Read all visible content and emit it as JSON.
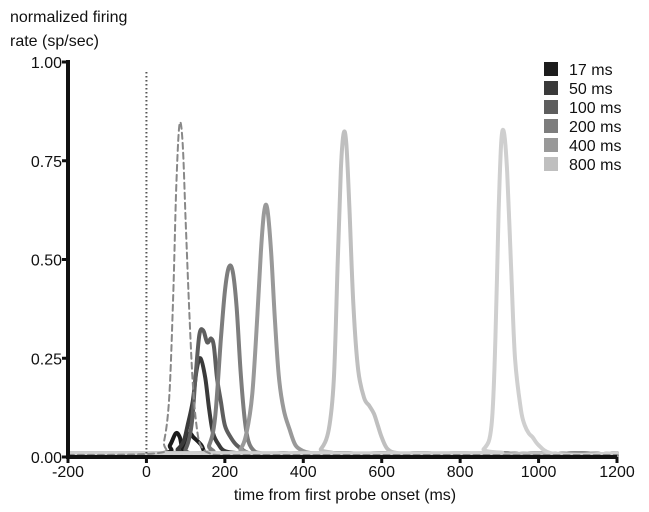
{
  "chart_data": {
    "type": "line",
    "title": "",
    "ylabel": "normalized firing rate (sp/sec)",
    "ylabel_lines": [
      "normalized firing",
      "rate (sp/sec)"
    ],
    "xlabel": "time from first probe onset (ms)",
    "xlim": [
      -200,
      1200
    ],
    "ylim": [
      0,
      1
    ],
    "x_ticks": [
      -200,
      0,
      200,
      400,
      600,
      800,
      1000,
      1200
    ],
    "x_tick_labels": [
      "-200",
      "0",
      "200",
      "400",
      "600",
      "800",
      "1000",
      "1200"
    ],
    "y_ticks": [
      0,
      0.25,
      0.5,
      0.75,
      1.0
    ],
    "y_tick_labels": [
      "0.00",
      "0.25",
      "0.50",
      "0.75",
      "1.00"
    ],
    "grid": false,
    "legend_position": "top-right",
    "reference_lines": [
      {
        "x": 0,
        "style": "dotted",
        "color": "#555555"
      }
    ],
    "series": [
      {
        "name": "17 ms",
        "color": "#1c1c1c",
        "x": [
          -200,
          40,
          60,
          75,
          85,
          92,
          100,
          110,
          120,
          140,
          150,
          170,
          200,
          240,
          300,
          350,
          400,
          500,
          600,
          700,
          800,
          900,
          1000,
          1100,
          1200
        ],
        "y": [
          0.005,
          0.01,
          0.03,
          0.06,
          0.05,
          0.02,
          0.04,
          0.06,
          0.05,
          0.03,
          0.01,
          0.01,
          0.005,
          0.01,
          0.005,
          0.01,
          0.005,
          0.01,
          0.005,
          0.01,
          0.005,
          0.01,
          0.005,
          0.01,
          0.005
        ]
      },
      {
        "name": "50 ms",
        "color": "#3a3a3a",
        "x": [
          -200,
          60,
          80,
          95,
          105,
          118,
          128,
          138,
          150,
          160,
          170,
          185,
          200,
          230,
          280,
          350,
          400,
          500,
          600,
          700,
          800,
          900,
          1000,
          1100,
          1200
        ],
        "y": [
          0.01,
          0.01,
          0.02,
          0.04,
          0.08,
          0.14,
          0.22,
          0.25,
          0.2,
          0.12,
          0.06,
          0.03,
          0.015,
          0.01,
          0.005,
          0.01,
          0.005,
          0.01,
          0.005,
          0.01,
          0.005,
          0.01,
          0.005,
          0.01,
          0.005
        ]
      },
      {
        "name": "100 ms",
        "color": "#5e5e5e",
        "x": [
          -200,
          80,
          100,
          115,
          125,
          135,
          145,
          155,
          165,
          172,
          180,
          190,
          200,
          215,
          230,
          260,
          300,
          400,
          500,
          600,
          700,
          800,
          900,
          1000,
          1100,
          1200
        ],
        "y": [
          0.01,
          0.01,
          0.02,
          0.08,
          0.2,
          0.31,
          0.32,
          0.29,
          0.3,
          0.28,
          0.2,
          0.14,
          0.08,
          0.05,
          0.03,
          0.01,
          0.005,
          0.01,
          0.005,
          0.01,
          0.005,
          0.01,
          0.005,
          0.01,
          0.005,
          0.01
        ]
      },
      {
        "name": "200 ms",
        "color": "#7d7d7d",
        "x": [
          -200,
          140,
          160,
          175,
          190,
          200,
          210,
          220,
          230,
          240,
          250,
          260,
          275,
          290,
          320,
          400,
          500,
          600,
          700,
          800,
          900,
          1000,
          1100,
          1200
        ],
        "y": [
          0.01,
          0.01,
          0.03,
          0.1,
          0.3,
          0.42,
          0.48,
          0.47,
          0.38,
          0.22,
          0.1,
          0.04,
          0.015,
          0.01,
          0.005,
          0.01,
          0.005,
          0.01,
          0.005,
          0.01,
          0.005,
          0.01,
          0.005,
          0.01
        ]
      },
      {
        "name": "400 ms",
        "color": "#999999",
        "x": [
          -200,
          220,
          240,
          255,
          270,
          283,
          292,
          300,
          308,
          318,
          328,
          338,
          350,
          365,
          380,
          400,
          420,
          460,
          500,
          600,
          700,
          800,
          900,
          1000,
          1100,
          1200
        ],
        "y": [
          0.01,
          0.01,
          0.02,
          0.06,
          0.16,
          0.36,
          0.52,
          0.62,
          0.63,
          0.52,
          0.34,
          0.2,
          0.12,
          0.07,
          0.03,
          0.015,
          0.01,
          0.005,
          0.01,
          0.005,
          0.01,
          0.005,
          0.01,
          0.005,
          0.01,
          0.005
        ]
      },
      {
        "name": "800 ms",
        "color": "#bfbfbf",
        "x": [
          -200,
          420,
          445,
          465,
          478,
          488,
          496,
          503,
          510,
          518,
          528,
          540,
          555,
          568,
          580,
          590,
          600,
          615,
          640,
          700,
          800,
          900,
          1000,
          1100,
          1200
        ],
        "y": [
          0.01,
          0.01,
          0.02,
          0.07,
          0.2,
          0.5,
          0.73,
          0.82,
          0.79,
          0.62,
          0.38,
          0.22,
          0.15,
          0.13,
          0.11,
          0.08,
          0.05,
          0.02,
          0.01,
          0.005,
          0.01,
          0.005,
          0.01,
          0.005,
          0.01
        ]
      },
      {
        "name": "",
        "color": "#cfcfcf",
        "x": [
          -200,
          820,
          860,
          880,
          890,
          898,
          905,
          912,
          920,
          930,
          940,
          955,
          965,
          975,
          985,
          1000,
          1030,
          1100,
          1200
        ],
        "y": [
          0.01,
          0.01,
          0.02,
          0.08,
          0.3,
          0.62,
          0.8,
          0.82,
          0.72,
          0.48,
          0.25,
          0.12,
          0.08,
          0.06,
          0.05,
          0.03,
          0.01,
          0.005,
          0.01
        ]
      },
      {
        "name": "",
        "color": "#888888",
        "dash": "6,4",
        "x": [
          -200,
          30,
          45,
          58,
          68,
          76,
          84,
          92,
          100,
          110,
          120,
          132,
          145,
          160,
          180,
          250,
          400,
          800,
          1200
        ],
        "y": [
          0.005,
          0.01,
          0.04,
          0.15,
          0.4,
          0.68,
          0.84,
          0.8,
          0.6,
          0.35,
          0.16,
          0.05,
          0.02,
          0.01,
          0.005,
          0.005,
          0.005,
          0.005,
          0.005
        ]
      }
    ],
    "legend": [
      {
        "label": "17 ms",
        "color": "#1c1c1c"
      },
      {
        "label": "50 ms",
        "color": "#3a3a3a"
      },
      {
        "label": "100 ms",
        "color": "#5e5e5e"
      },
      {
        "label": "200 ms",
        "color": "#7d7d7d"
      },
      {
        "label": "400 ms",
        "color": "#999999"
      },
      {
        "label": "800 ms",
        "color": "#bfbfbf"
      }
    ]
  }
}
